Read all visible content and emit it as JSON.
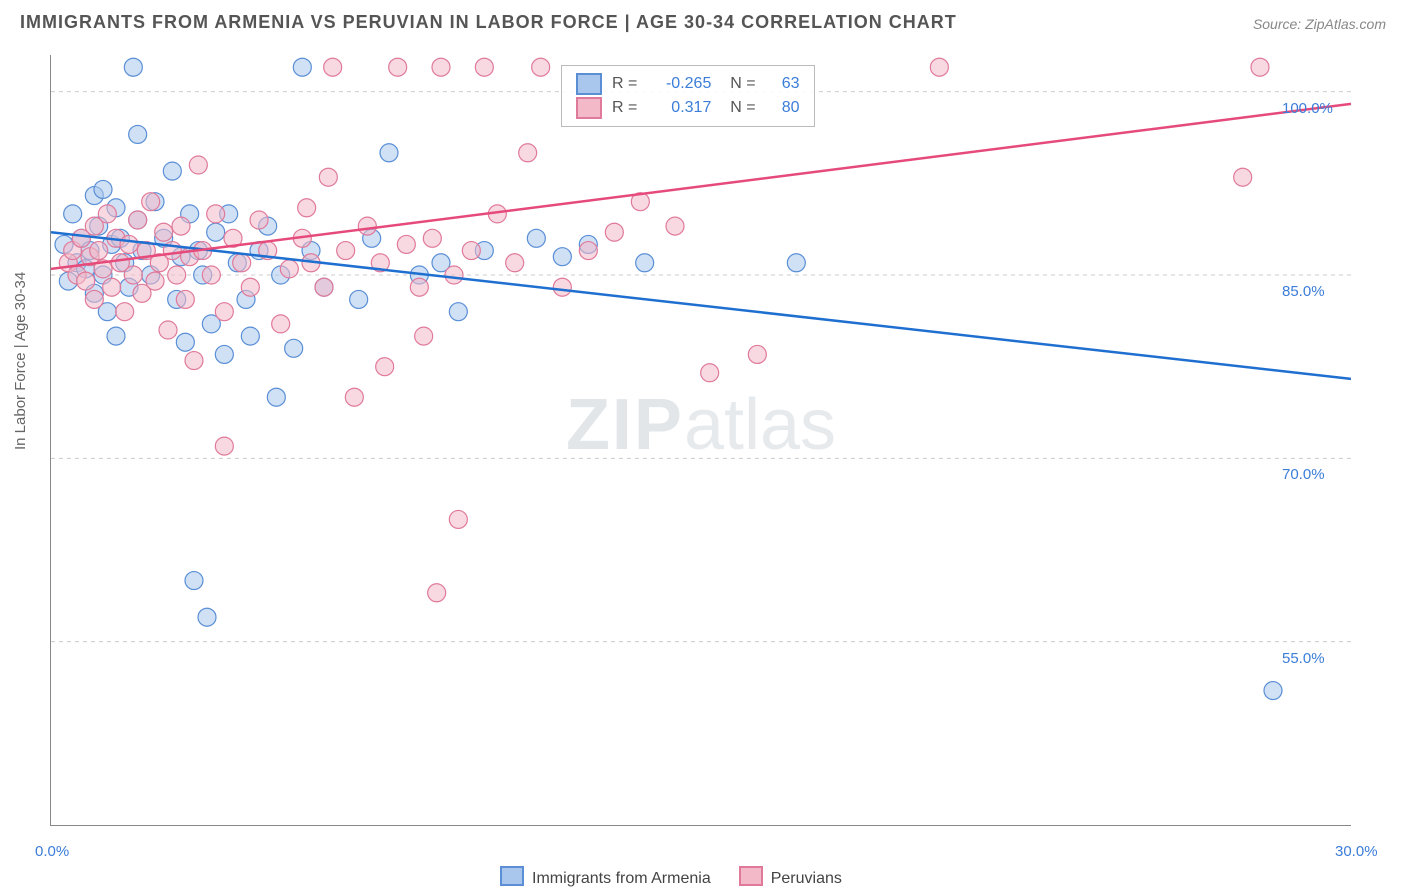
{
  "title": "IMMIGRANTS FROM ARMENIA VS PERUVIAN IN LABOR FORCE | AGE 30-34 CORRELATION CHART",
  "source": "Source: ZipAtlas.com",
  "y_axis_label": "In Labor Force | Age 30-34",
  "watermark": {
    "a": "ZIP",
    "b": "atlas"
  },
  "chart": {
    "type": "scatter-with-regression",
    "background_color": "#ffffff",
    "grid_color": "#cccccc",
    "grid_dash": "4 4",
    "axis_color": "#888888",
    "xlim": [
      0,
      30
    ],
    "ylim": [
      40,
      103
    ],
    "x_tick_positions": [
      0,
      2.7,
      5.5,
      8.4,
      11.2,
      14.0,
      16.8,
      19.6,
      22.4,
      25.2,
      28.0
    ],
    "x_tick_labels": {
      "0": "0.0%",
      "30": "30.0%"
    },
    "y_tick_positions": [
      55,
      70,
      85,
      100
    ],
    "y_tick_labels": {
      "55": "55.0%",
      "70": "70.0%",
      "85": "85.0%",
      "100": "100.0%"
    },
    "marker_radius": 9,
    "marker_opacity": 0.55,
    "line_width": 2.5,
    "series": [
      {
        "name": "Immigrants from Armenia",
        "color_fill": "#a9c6ec",
        "color_stroke": "#5a8fd6",
        "line_color": "#1f6fd0",
        "R": "-0.265",
        "N": "63",
        "regression": {
          "x1": 0,
          "y1": 88.5,
          "x2": 30,
          "y2": 76.5
        },
        "points": [
          [
            0.3,
            87.5
          ],
          [
            0.4,
            84.5
          ],
          [
            0.5,
            90.0
          ],
          [
            0.6,
            86.0
          ],
          [
            0.7,
            88.0
          ],
          [
            0.8,
            85.5
          ],
          [
            0.9,
            87.0
          ],
          [
            1.0,
            91.5
          ],
          [
            1.0,
            83.5
          ],
          [
            1.1,
            89.0
          ],
          [
            1.2,
            92.0
          ],
          [
            1.2,
            85.0
          ],
          [
            1.3,
            82.0
          ],
          [
            1.4,
            87.5
          ],
          [
            1.5,
            90.5
          ],
          [
            1.5,
            80.0
          ],
          [
            1.6,
            88.0
          ],
          [
            1.7,
            86.0
          ],
          [
            1.8,
            84.0
          ],
          [
            1.9,
            102.0
          ],
          [
            2.0,
            89.5
          ],
          [
            2.1,
            87.0
          ],
          [
            2.3,
            85.0
          ],
          [
            2.4,
            91.0
          ],
          [
            2.6,
            88.0
          ],
          [
            2.8,
            93.5
          ],
          [
            2.9,
            83.0
          ],
          [
            3.0,
            86.5
          ],
          [
            3.1,
            79.5
          ],
          [
            3.2,
            90.0
          ],
          [
            3.4,
            87.0
          ],
          [
            3.5,
            85.0
          ],
          [
            3.7,
            81.0
          ],
          [
            3.8,
            88.5
          ],
          [
            4.0,
            78.5
          ],
          [
            4.1,
            90.0
          ],
          [
            4.3,
            86.0
          ],
          [
            4.5,
            83.0
          ],
          [
            4.8,
            87.0
          ],
          [
            5.0,
            89.0
          ],
          [
            5.3,
            85.0
          ],
          [
            5.6,
            79.0
          ],
          [
            5.8,
            102.0
          ],
          [
            6.0,
            87.0
          ],
          [
            6.3,
            84.0
          ],
          [
            7.1,
            83.0
          ],
          [
            7.4,
            88.0
          ],
          [
            9.0,
            86.0
          ],
          [
            9.4,
            82.0
          ],
          [
            10.0,
            87.0
          ],
          [
            11.2,
            88.0
          ],
          [
            11.8,
            86.5
          ],
          [
            12.4,
            87.5
          ],
          [
            13.7,
            86.0
          ],
          [
            17.2,
            86.0
          ],
          [
            2.0,
            96.5
          ],
          [
            3.3,
            60.0
          ],
          [
            3.6,
            57.0
          ],
          [
            7.8,
            95.0
          ],
          [
            4.6,
            80.0
          ],
          [
            5.2,
            75.0
          ],
          [
            28.2,
            51.0
          ],
          [
            8.5,
            85.0
          ]
        ]
      },
      {
        "name": "Peruvians",
        "color_fill": "#f3b9c9",
        "color_stroke": "#e07a9a",
        "line_color": "#e64a7b",
        "R": "0.317",
        "N": "80",
        "regression": {
          "x1": 0,
          "y1": 85.5,
          "x2": 30,
          "y2": 99.0
        },
        "points": [
          [
            0.4,
            86.0
          ],
          [
            0.5,
            87.0
          ],
          [
            0.6,
            85.0
          ],
          [
            0.7,
            88.0
          ],
          [
            0.8,
            84.5
          ],
          [
            0.9,
            86.5
          ],
          [
            1.0,
            89.0
          ],
          [
            1.0,
            83.0
          ],
          [
            1.1,
            87.0
          ],
          [
            1.2,
            85.5
          ],
          [
            1.3,
            90.0
          ],
          [
            1.4,
            84.0
          ],
          [
            1.5,
            88.0
          ],
          [
            1.6,
            86.0
          ],
          [
            1.7,
            82.0
          ],
          [
            1.8,
            87.5
          ],
          [
            1.9,
            85.0
          ],
          [
            2.0,
            89.5
          ],
          [
            2.1,
            83.5
          ],
          [
            2.2,
            87.0
          ],
          [
            2.3,
            91.0
          ],
          [
            2.4,
            84.5
          ],
          [
            2.5,
            86.0
          ],
          [
            2.6,
            88.5
          ],
          [
            2.7,
            80.5
          ],
          [
            2.8,
            87.0
          ],
          [
            2.9,
            85.0
          ],
          [
            3.0,
            89.0
          ],
          [
            3.1,
            83.0
          ],
          [
            3.2,
            86.5
          ],
          [
            3.4,
            94.0
          ],
          [
            3.5,
            87.0
          ],
          [
            3.7,
            85.0
          ],
          [
            3.8,
            90.0
          ],
          [
            4.0,
            82.0
          ],
          [
            4.2,
            88.0
          ],
          [
            4.4,
            86.0
          ],
          [
            4.6,
            84.0
          ],
          [
            4.8,
            89.5
          ],
          [
            5.0,
            87.0
          ],
          [
            5.3,
            81.0
          ],
          [
            5.5,
            85.5
          ],
          [
            5.8,
            88.0
          ],
          [
            6.0,
            86.0
          ],
          [
            6.3,
            84.0
          ],
          [
            6.5,
            102.0
          ],
          [
            6.8,
            87.0
          ],
          [
            7.0,
            75.0
          ],
          [
            7.3,
            89.0
          ],
          [
            7.6,
            86.0
          ],
          [
            8.0,
            102.0
          ],
          [
            8.2,
            87.5
          ],
          [
            8.5,
            84.0
          ],
          [
            8.8,
            88.0
          ],
          [
            9.0,
            102.0
          ],
          [
            9.3,
            85.0
          ],
          [
            9.7,
            87.0
          ],
          [
            10.0,
            102.0
          ],
          [
            10.3,
            90.0
          ],
          [
            10.7,
            86.0
          ],
          [
            11.0,
            95.0
          ],
          [
            11.3,
            102.0
          ],
          [
            11.8,
            84.0
          ],
          [
            12.4,
            87.0
          ],
          [
            13.0,
            88.5
          ],
          [
            13.6,
            91.0
          ],
          [
            15.2,
            77.0
          ],
          [
            16.3,
            78.5
          ],
          [
            20.5,
            102.0
          ],
          [
            27.9,
            102.0
          ],
          [
            27.5,
            93.0
          ],
          [
            4.0,
            71.0
          ],
          [
            7.7,
            77.5
          ],
          [
            8.6,
            80.0
          ],
          [
            9.4,
            65.0
          ],
          [
            8.9,
            59.0
          ],
          [
            5.9,
            90.5
          ],
          [
            3.3,
            78.0
          ],
          [
            6.4,
            93.0
          ],
          [
            14.4,
            89.0
          ]
        ]
      }
    ],
    "legend_bottom": [
      {
        "swatch_fill": "#a9c6ec",
        "swatch_stroke": "#5a8fd6",
        "label": "Immigrants from Armenia"
      },
      {
        "swatch_fill": "#f3b9c9",
        "swatch_stroke": "#e07a9a",
        "label": "Peruvians"
      }
    ]
  }
}
